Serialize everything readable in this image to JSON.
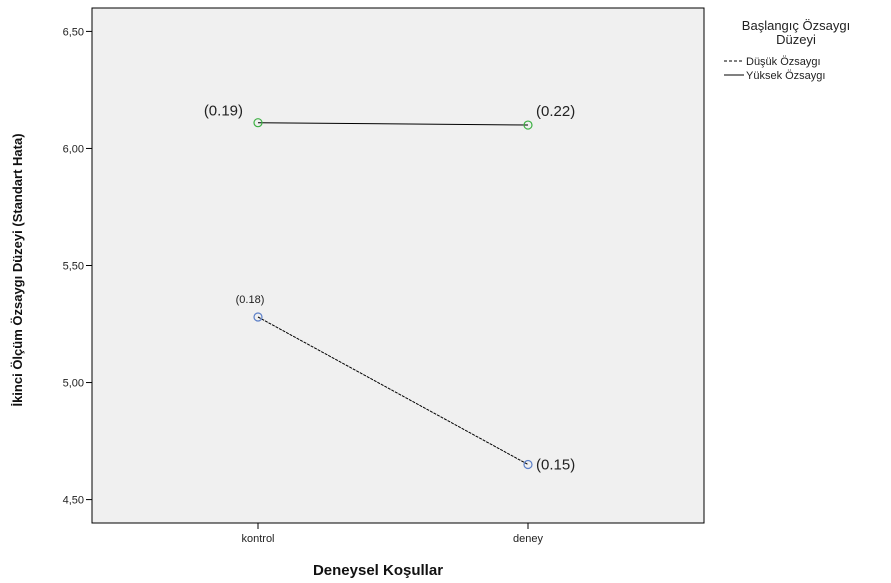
{
  "chart_data": {
    "type": "line",
    "title": "",
    "xlabel": "Deneysel Koşullar",
    "ylabel": "İkinci Ölçüm Özsaygı Düzeyi (Standart Hata)",
    "categories": [
      "kontrol",
      "deney"
    ],
    "ylim": [
      4.4,
      6.6
    ],
    "yticks": [
      "4,50",
      "5,00",
      "5,50",
      "6,00",
      "6,50"
    ],
    "ytick_values": [
      4.5,
      5.0,
      5.5,
      6.0,
      6.5
    ],
    "grid": false,
    "legend": {
      "title_line1": "Başlangıç Özsaygı",
      "title_line2": "Düzeyi",
      "placement": "right"
    },
    "series": [
      {
        "name": "Düşük Özsaygı",
        "values": [
          5.28,
          4.65
        ],
        "labels": [
          "(0.18)",
          "(0.15)"
        ],
        "marker_color": "#5b7fc8",
        "line_style": "dashed"
      },
      {
        "name": "Yüksek Özsaygı",
        "values": [
          6.11,
          6.1
        ],
        "labels": [
          "(0.19)",
          "(0.22)"
        ],
        "marker_color": "#3cb043",
        "line_style": "solid"
      }
    ],
    "colors": {
      "plot_background": "#f0f0f0",
      "line": "#000000"
    }
  }
}
